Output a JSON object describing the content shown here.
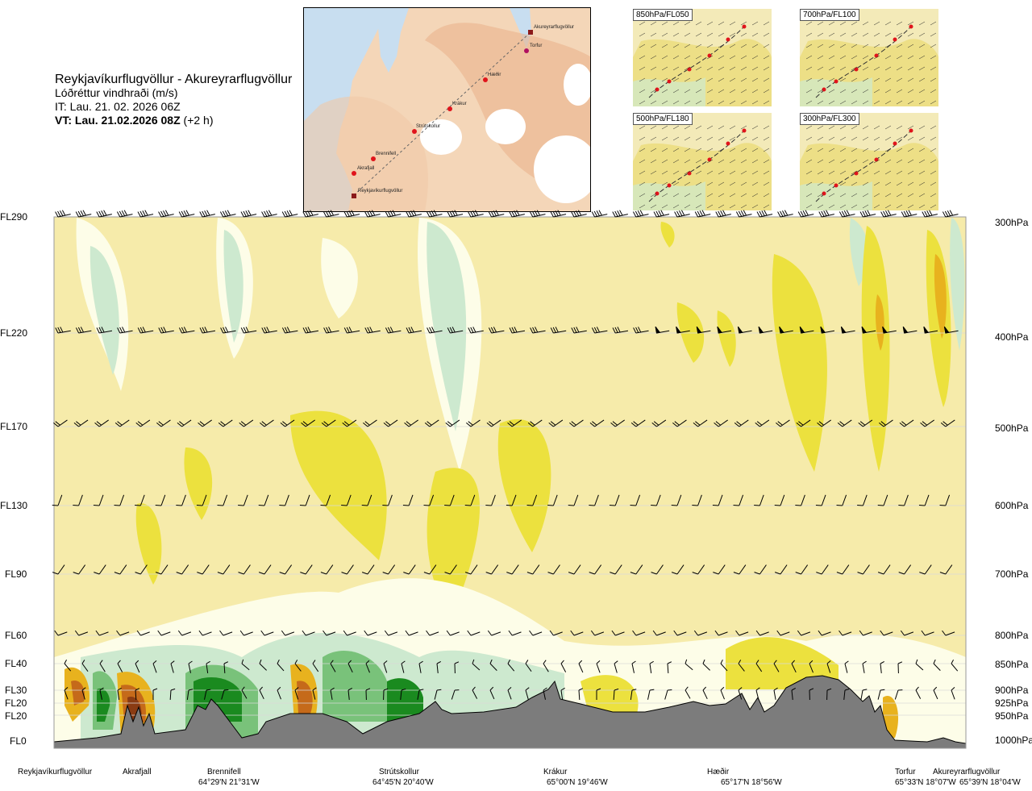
{
  "header": {
    "route_title": "Reykjavíkurflugvöllur - Akureyrarflugvöllur",
    "parameter": "Lóðréttur vindhraði (m/s)",
    "issue_time": "IT: Lau. 21. 02. 2026 06Z",
    "valid_time": "VT: Lau. 21.02.2026 08Z",
    "valid_offset": "(+2 h)"
  },
  "route_map": {
    "waypoints": [
      "Akureyrarflugvöllur",
      "Torfur",
      "Hæðir",
      "Krákur",
      "Strútskollur",
      "Brennifell",
      "Akrafjall",
      "Reykjavíkurflugvöllur"
    ]
  },
  "mini_maps": [
    {
      "label": "850hPa/FL050"
    },
    {
      "label": "700hPa/FL100"
    },
    {
      "label": "500hPa/FL180"
    },
    {
      "label": "300hPa/FL300"
    }
  ],
  "colors": {
    "background_field": "#f6ebaa",
    "pos_weak": "#ece13e",
    "pos_mod": "#e8b21e",
    "pos_strong": "#c56a1a",
    "pos_max": "#8a3b12",
    "neg_weak": "#fdfde8",
    "neg_mod": "#cde9cf",
    "neg_strong": "#79c27a",
    "neg_max": "#1a8a1f",
    "terrain": "#7c7c7c",
    "route_marker": "#e0141b"
  },
  "chart_data": {
    "type": "heatmap",
    "title": "Reykjavíkurflugvöllur - Akureyrarflugvöllur",
    "quantity": "Lóðréttur vindhraði (m/s)",
    "y_levels": [
      {
        "fl": "FL290",
        "hpa": "300hPa"
      },
      {
        "fl": "FL220",
        "hpa": "400hPa"
      },
      {
        "fl": "FL170",
        "hpa": "500hPa"
      },
      {
        "fl": "FL130",
        "hpa": "600hPa"
      },
      {
        "fl": "FL90",
        "hpa": "700hPa"
      },
      {
        "fl": "FL60",
        "hpa": "800hPa"
      },
      {
        "fl": "FL40",
        "hpa": "850hPa"
      },
      {
        "fl": "FL30",
        "hpa": "900hPa"
      },
      {
        "fl": "FL20",
        "hpa": "925hPa"
      },
      {
        "fl": "FL20",
        "hpa": "950hPa"
      },
      {
        "fl": "FL0",
        "hpa": "1000hPa"
      }
    ],
    "x_sites": [
      {
        "name": "Reykjavíkurflugvöllur",
        "coord": ""
      },
      {
        "name": "Akrafjall",
        "coord": ""
      },
      {
        "name": "Brennifell",
        "coord": "64°29'N 21°31'W"
      },
      {
        "name": "Strútskollur",
        "coord": "64°45'N 20°40'W"
      },
      {
        "name": "Krákur",
        "coord": "65°00'N 19°46'W"
      },
      {
        "name": "Hæðir",
        "coord": "65°17'N 18°56'W"
      },
      {
        "name": "Torfur",
        "coord": "65°33'N 18°07'W"
      },
      {
        "name": "Akureyrarflugvöllur",
        "coord": "65°39'N 18°04'W"
      }
    ],
    "legend": "none",
    "grid": true
  }
}
